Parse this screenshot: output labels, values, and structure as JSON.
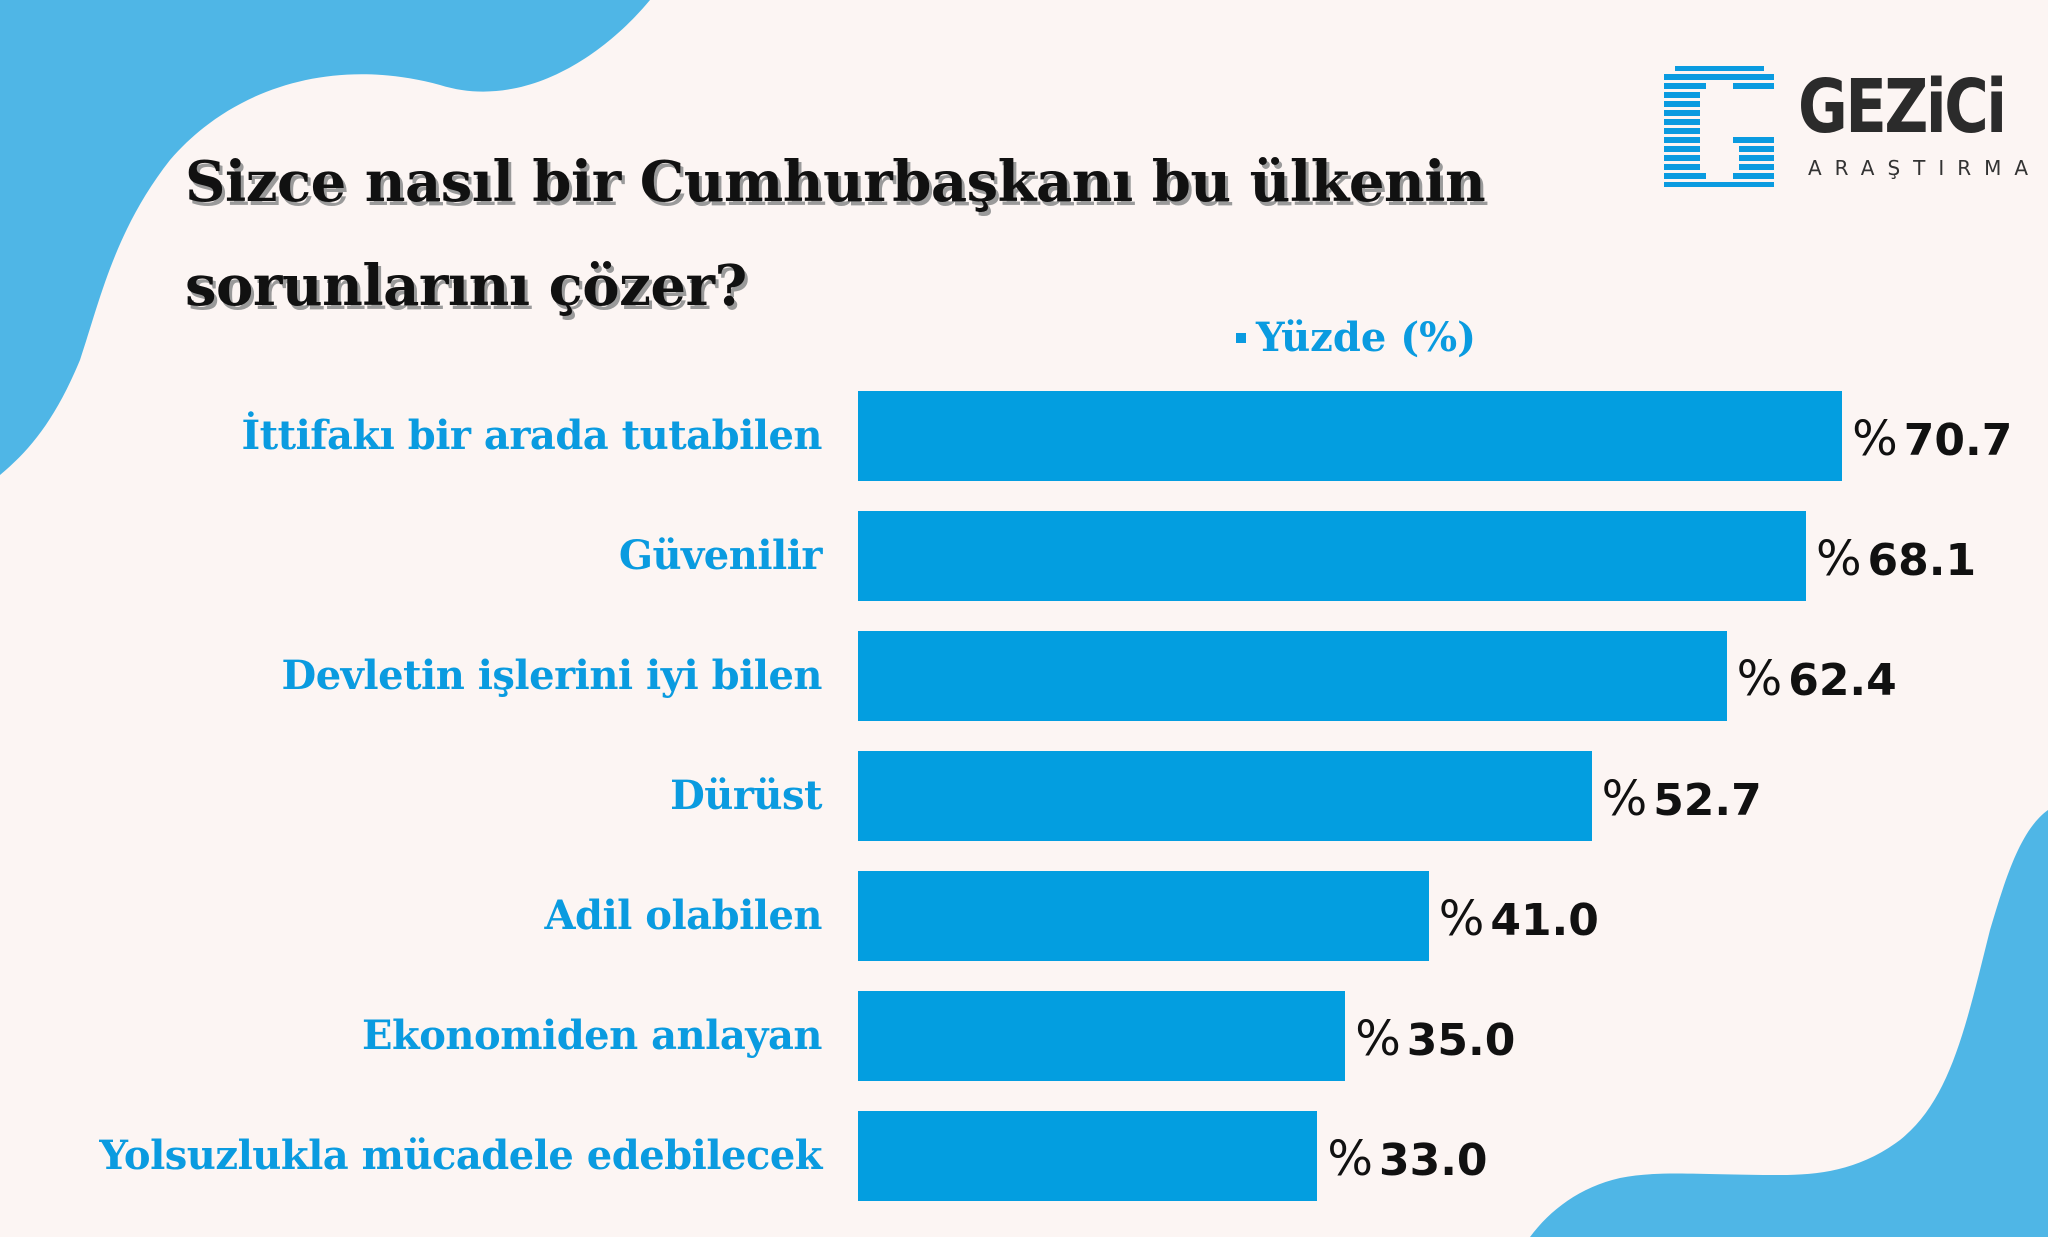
{
  "colors": {
    "background": "#fcf5f3",
    "decor_blue": "#4fb6e6",
    "bar": "#039ee0",
    "label": "#0a9be0",
    "title": "#111111",
    "logo_blue": "#0a9be0",
    "logo_dark": "#2b2b2b"
  },
  "header": {
    "title_line1": "Sizce nasıl bir Cumhurbaşkanı bu ülkenin",
    "title_line2": "sorunlarını çözer?"
  },
  "logo": {
    "name": "GEZiCi",
    "subtitle": "ARAŞTIRMA",
    "icon": "striped-g-logo-icon"
  },
  "legend": {
    "swatch_icon": "square-swatch-icon",
    "label": "Yüzde (%)"
  },
  "rows": [
    {
      "label": "İttifakı bir arada tutabilen",
      "value": 70.7,
      "display": "70.7",
      "prefix": "%"
    },
    {
      "label": "Güvenilir",
      "value": 68.1,
      "display": "68.1",
      "prefix": "%"
    },
    {
      "label": "Devletin işlerini iyi bilen",
      "value": 62.4,
      "display": "62.4",
      "prefix": "%"
    },
    {
      "label": "Dürüst",
      "value": 52.7,
      "display": "52.7",
      "prefix": "%"
    },
    {
      "label": "Adil olabilen",
      "value": 41.0,
      "display": "41.0",
      "prefix": "%"
    },
    {
      "label": "Ekonomiden anlayan",
      "value": 35.0,
      "display": "35.0",
      "prefix": "%"
    },
    {
      "label": "Yolsuzlukla mücadele edebilecek",
      "value": 33.0,
      "display": "33.0",
      "prefix": "%"
    }
  ],
  "chart_data": {
    "type": "bar",
    "orientation": "horizontal",
    "title": "Sizce nasıl bir Cumhurbaşkanı bu ülkenin sorunlarını çözer?",
    "categories": [
      "İttifakı bir arada tutabilen",
      "Güvenilir",
      "Devletin işlerini iyi bilen",
      "Dürüst",
      "Adil olabilen",
      "Ekonomiden anlayan",
      "Yolsuzlukla mücadele edebilecek"
    ],
    "series": [
      {
        "name": "Yüzde (%)",
        "values": [
          70.7,
          68.1,
          62.4,
          52.7,
          41.0,
          35.0,
          33.0
        ]
      }
    ],
    "xlabel": "",
    "ylabel": "",
    "value_labels": [
      "% 70.7",
      "% 68.1",
      "% 62.4",
      "% 52.7",
      "% 41.0",
      "% 35.0",
      "% 33.0"
    ],
    "legend_position": "top",
    "grid": false,
    "axes_visible": false,
    "source_brand": "GEZiCi ARAŞTIRMA"
  }
}
